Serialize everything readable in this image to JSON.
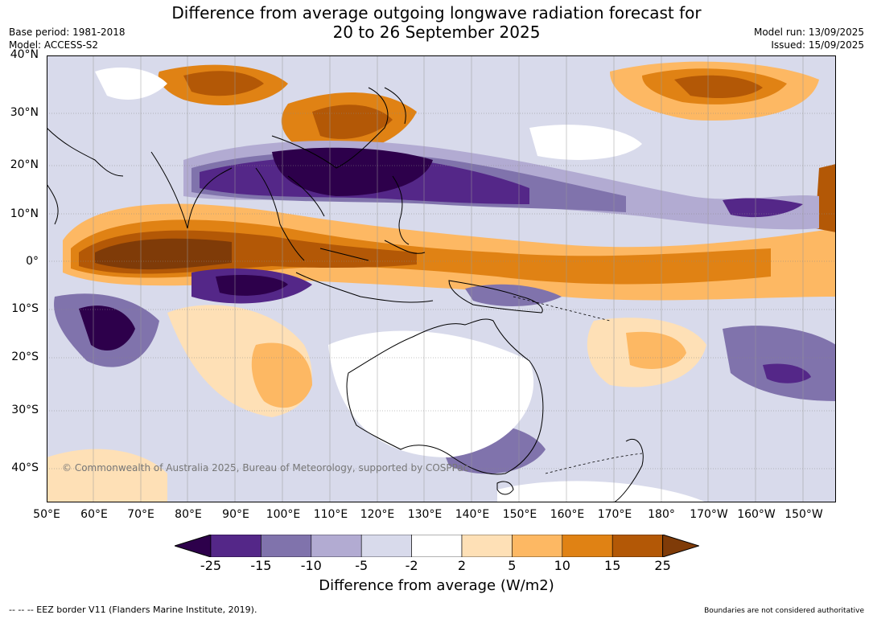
{
  "header": {
    "title_line1": "Difference from average outgoing longwave radiation forecast for",
    "title_line2": "20 to 26 September 2025",
    "base_period": "Base period: 1981-2018",
    "model": "Model: ACCESS-S2",
    "model_run": "Model run: 13/09/2025",
    "issued": "Issued: 15/09/2025"
  },
  "map": {
    "lat_labels": [
      "40°N",
      "30°N",
      "20°N",
      "10°N",
      "0°",
      "10°S",
      "20°S",
      "30°S",
      "40°S"
    ],
    "lon_labels": [
      "50°E",
      "60°E",
      "70°E",
      "80°E",
      "90°E",
      "100°E",
      "110°E",
      "120°E",
      "130°E",
      "140°E",
      "150°E",
      "160°E",
      "170°E",
      "180°",
      "170°W",
      "160°W",
      "150°W"
    ],
    "copyright": "© Commonwealth of Australia 2025, Bureau of Meteorology, supported by COSPPac",
    "extent": {
      "lon_min": 50,
      "lon_max": 217,
      "lat_min": -46,
      "lat_max": 40
    }
  },
  "legend": {
    "ticks": [
      "-25",
      "-15",
      "-10",
      "-5",
      "-2",
      "2",
      "5",
      "10",
      "15",
      "25"
    ],
    "colors": [
      "#2d004b",
      "#542788",
      "#8073ac",
      "#b2abd2",
      "#d8daeb",
      "#ffffff",
      "#fee0b6",
      "#fdb863",
      "#e08214",
      "#b35806",
      "#7f3b08"
    ],
    "label": "Difference from average (W/m2)"
  },
  "footer": {
    "eez_note": "--  --  -- EEZ border V11 (Flanders Marine Institute, 2019).",
    "disclaimer": "Boundaries are not considered authoritative"
  }
}
